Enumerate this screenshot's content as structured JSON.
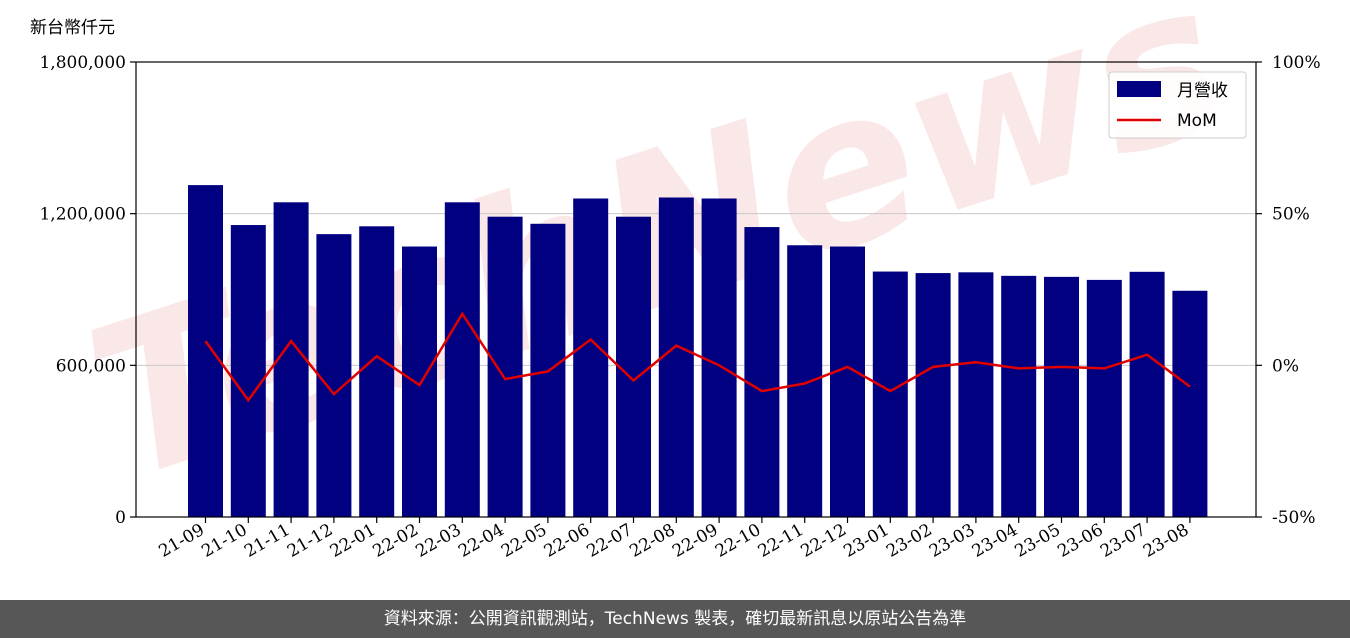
{
  "chart_data": {
    "type": "bar",
    "unit_label": "新台幣仟元",
    "categories": [
      "21-09",
      "21-10",
      "21-11",
      "21-12",
      "22-01",
      "22-02",
      "22-03",
      "22-04",
      "22-05",
      "22-06",
      "22-07",
      "22-08",
      "22-09",
      "22-10",
      "22-11",
      "22-12",
      "23-01",
      "23-02",
      "23-03",
      "23-04",
      "23-05",
      "23-06",
      "23-07",
      "23-08"
    ],
    "series": [
      {
        "name": "月營收",
        "type": "bar",
        "axis": "left",
        "color": "#000080",
        "values": [
          1313000,
          1155000,
          1245000,
          1119000,
          1150000,
          1070000,
          1245000,
          1188000,
          1160000,
          1260000,
          1188000,
          1264000,
          1260000,
          1147000,
          1075000,
          1070000,
          971000,
          965000,
          968000,
          954000,
          950000,
          938000,
          970000,
          895000
        ]
      },
      {
        "name": "MoM",
        "type": "line",
        "axis": "right",
        "color": "#e00000",
        "values": [
          8.0,
          -11.5,
          8.0,
          -9.5,
          3.0,
          -6.5,
          17.0,
          -4.5,
          -2.0,
          8.5,
          -5.0,
          6.5,
          0.0,
          -8.5,
          -6.0,
          -0.5,
          -8.5,
          -0.5,
          1.0,
          -1.0,
          -0.5,
          -1.0,
          3.5,
          -7.0
        ]
      }
    ],
    "y_left": {
      "ylim": [
        0,
        1800000
      ],
      "ticks": [
        0,
        600000,
        1200000,
        1800000
      ],
      "tick_labels": [
        "0",
        "600,000",
        "1,200,000",
        "1,800,000"
      ]
    },
    "y_right": {
      "ylim": [
        -50,
        100
      ],
      "ticks": [
        -50,
        0,
        50,
        100
      ],
      "tick_labels": [
        "-50%",
        "0%",
        "50%",
        "100%"
      ]
    },
    "grid": "horizontal",
    "legend": "top-right"
  },
  "footer": {
    "source_text": "資料來源：公開資訊觀測站，TechNews 製表，確切最新訊息以原站公告為準"
  },
  "watermark": {
    "text": "TechNews",
    "color": "#f6d5d5"
  }
}
